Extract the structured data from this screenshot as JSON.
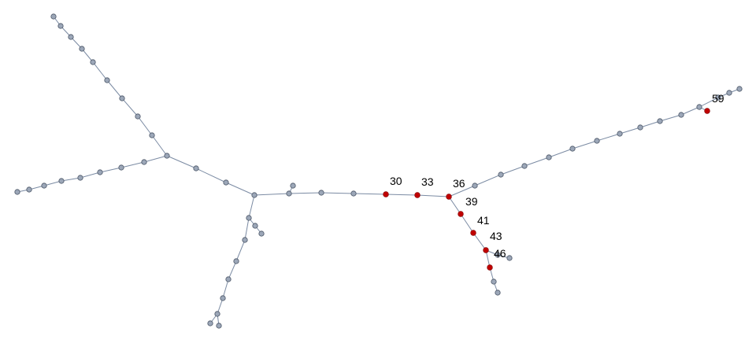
{
  "colors": {
    "edge": "#7b8ba3",
    "node": "#9ca7b8",
    "highlight": "#c00000"
  },
  "labels": {
    "n30": "30",
    "n33": "33",
    "n36": "36",
    "n39": "39",
    "n41": "41",
    "n43": "43",
    "n46": "46",
    "n59": "59"
  }
}
